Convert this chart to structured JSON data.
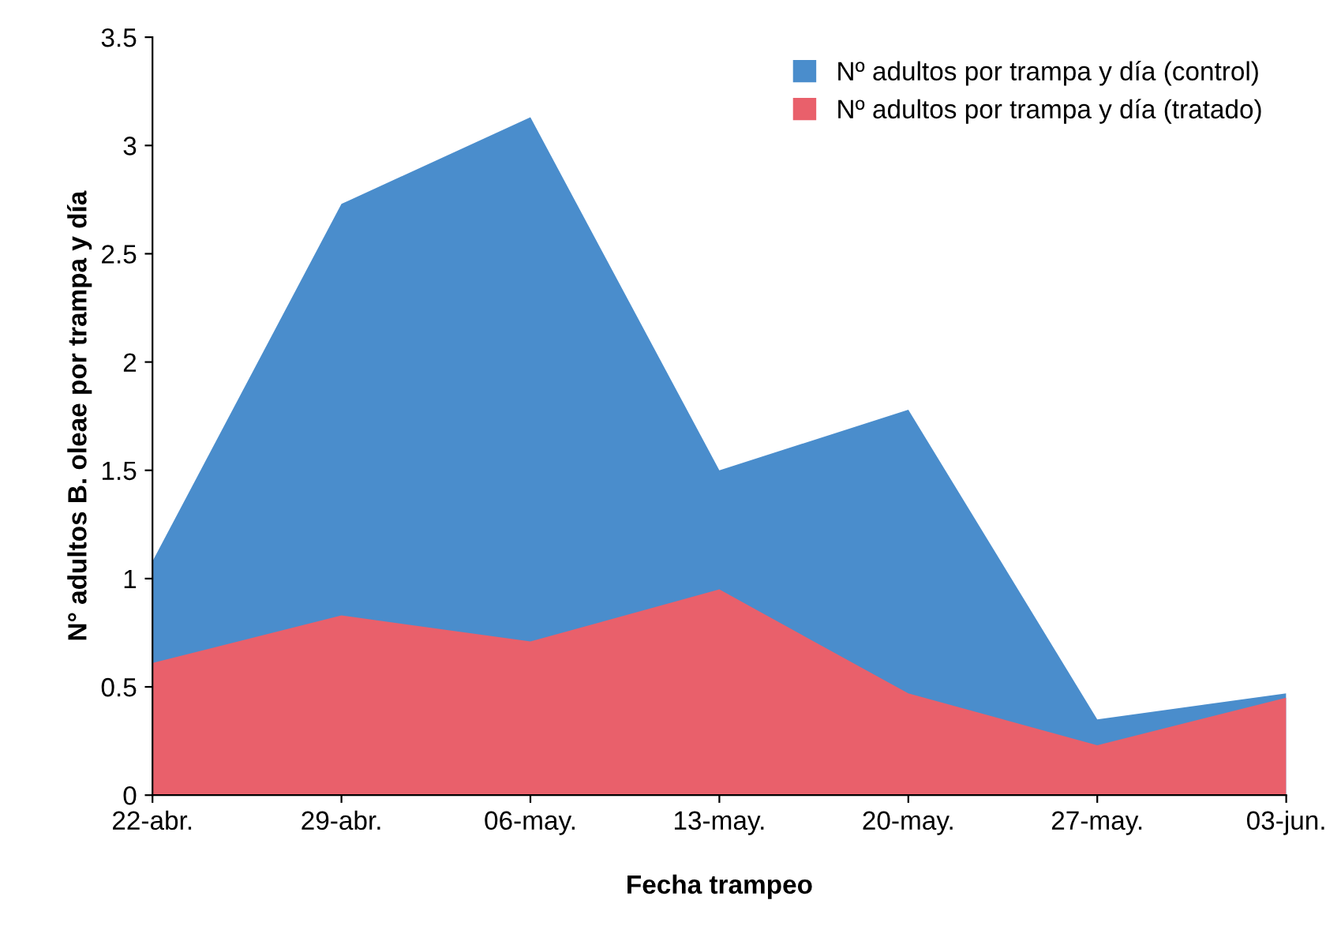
{
  "chart_data": {
    "type": "area",
    "xlabel": "Fecha trampeo",
    "ylabel": "N° adultos B. oleae por trampa y día",
    "categories": [
      "22-abr.",
      "29-abr.",
      "06-may.",
      "13-may.",
      "20-may.",
      "27-may.",
      "03-jun."
    ],
    "series": [
      {
        "name": "Nº adultos por trampa y día (control)",
        "color": "#4a8dcc",
        "values": [
          1.08,
          2.73,
          3.13,
          1.5,
          1.78,
          0.35,
          0.47
        ]
      },
      {
        "name": "Nº adultos por trampa y día (tratado)",
        "color": "#e9606b",
        "values": [
          0.61,
          0.83,
          0.71,
          0.95,
          0.47,
          0.23,
          0.45
        ]
      }
    ],
    "ylim": [
      0,
      3.5
    ],
    "yticks": [
      0,
      0.5,
      1,
      1.5,
      2,
      2.5,
      3,
      3.5
    ],
    "grid": false,
    "legend": "top right"
  }
}
